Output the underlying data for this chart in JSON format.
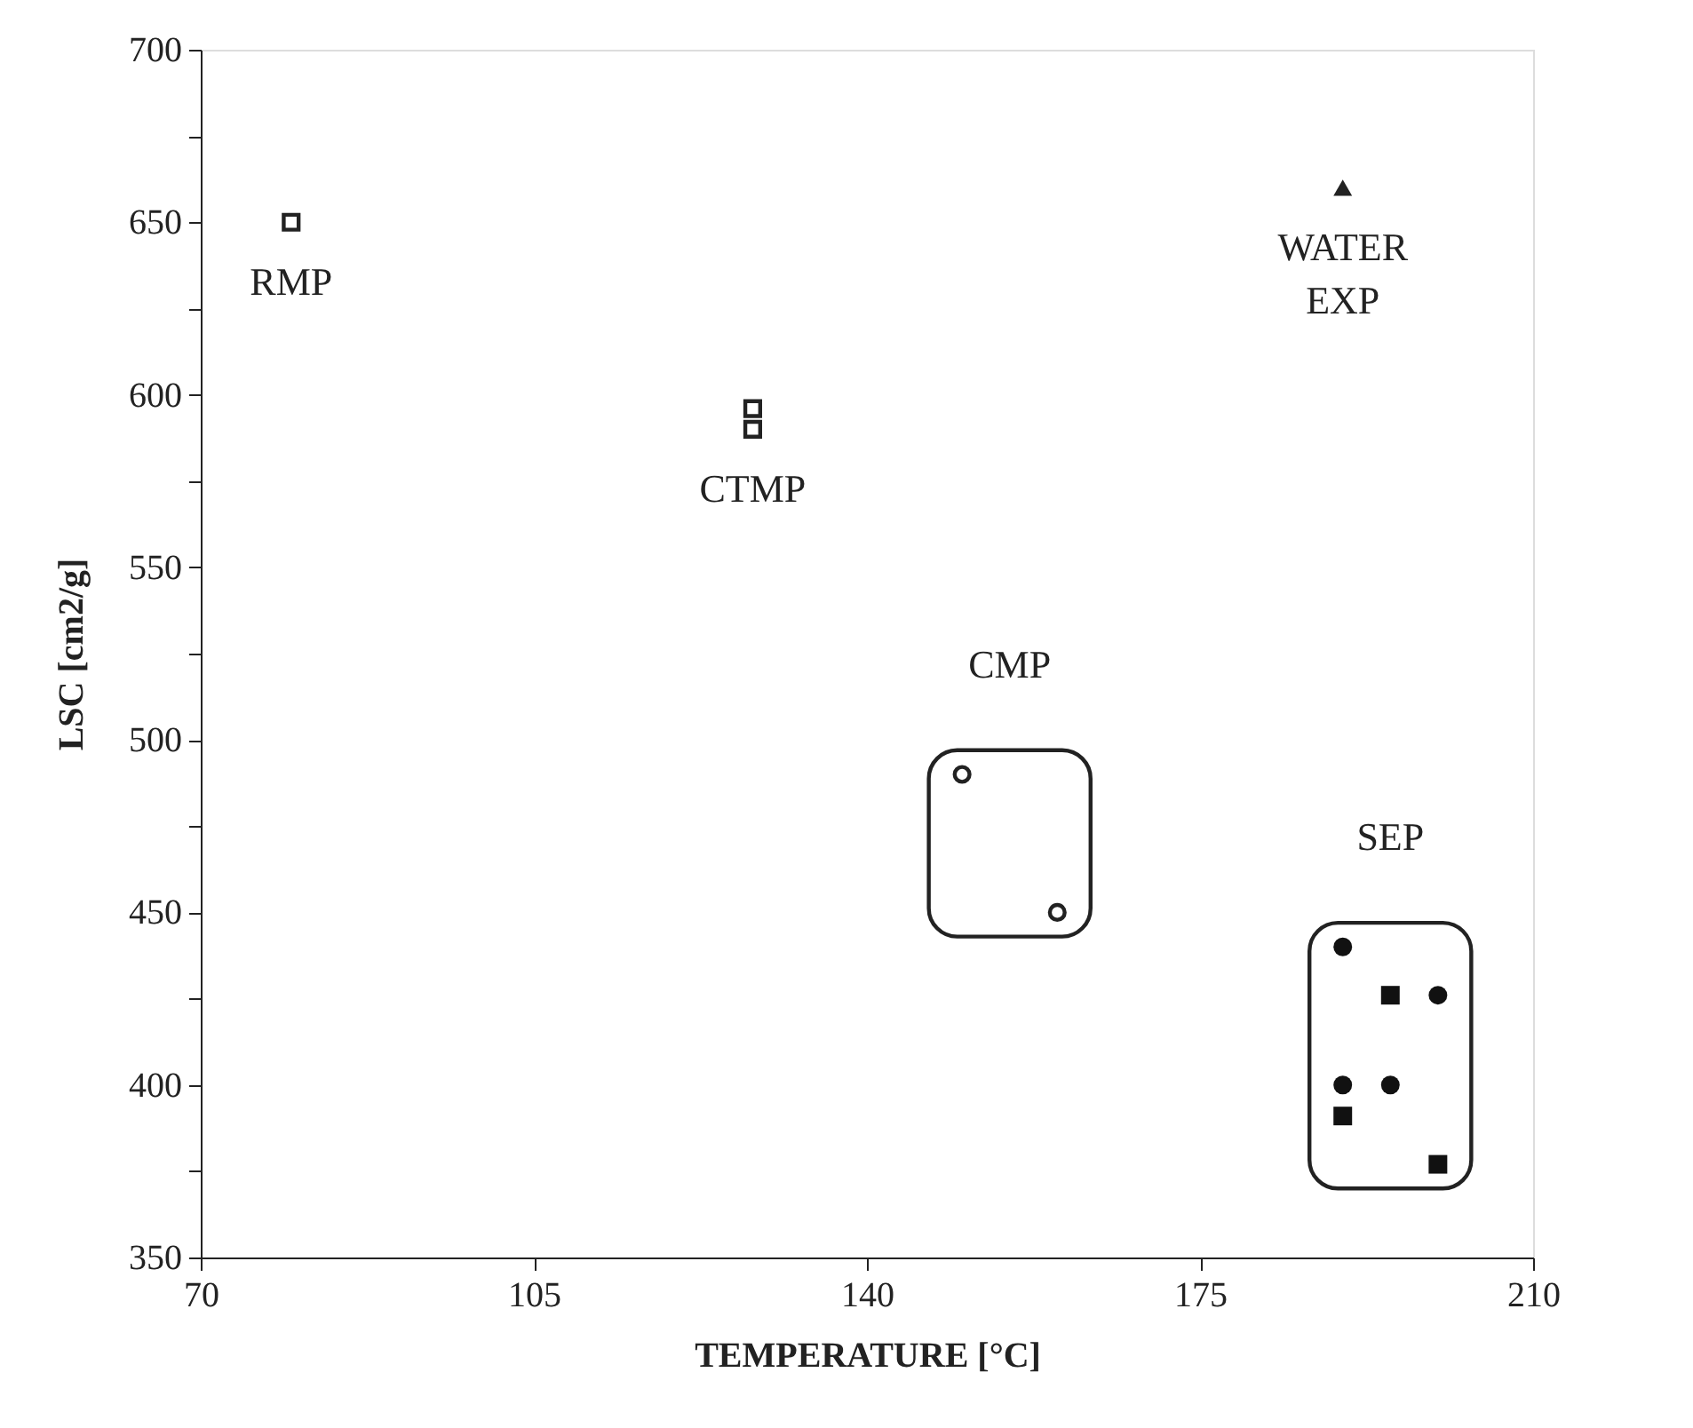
{
  "chart_data": {
    "type": "scatter",
    "xlabel": "TEMPERATURE [°C]",
    "ylabel": "LSC  [cm2/g]",
    "xlim": [
      70,
      210
    ],
    "xticks": [
      70,
      105,
      140,
      175,
      210
    ],
    "ylim": [
      350,
      700
    ],
    "yticks": [
      350,
      {
        "value": 375,
        "label": null
      },
      400,
      {
        "value": 425,
        "label": null
      },
      450,
      {
        "value": 475,
        "label": null
      },
      500,
      {
        "value": 525,
        "label": null
      },
      550,
      {
        "value": 575,
        "label": null
      },
      600,
      {
        "value": 625,
        "label": null
      },
      650,
      {
        "value": 675,
        "label": null
      },
      700
    ],
    "grid": false,
    "series": [
      {
        "name": "RMP",
        "color": "#222222",
        "marker": "square",
        "x": [
          79.5
        ],
        "values": [
          650
        ]
      },
      {
        "name": "CTMP",
        "color": "#222222",
        "marker": "square",
        "x": [
          128,
          128
        ],
        "values": [
          596,
          590
        ]
      },
      {
        "name": "WATER EXP",
        "color": "#222222",
        "marker": "triangle",
        "x": [
          190
        ],
        "values": [
          660
        ]
      },
      {
        "name": "CMP",
        "color": "#222222",
        "marker": "circle",
        "x": [
          150,
          160
        ],
        "values": [
          490,
          450
        ]
      },
      {
        "name": "SEP",
        "color": "#111111",
        "marker": "circle",
        "x": [
          190,
          200,
          190,
          195
        ],
        "values": [
          440,
          426,
          400,
          400
        ]
      },
      {
        "color": "#111111",
        "marker": "square",
        "x": [
          195,
          190,
          200
        ],
        "values": [
          426,
          391,
          377
        ]
      }
    ]
  }
}
